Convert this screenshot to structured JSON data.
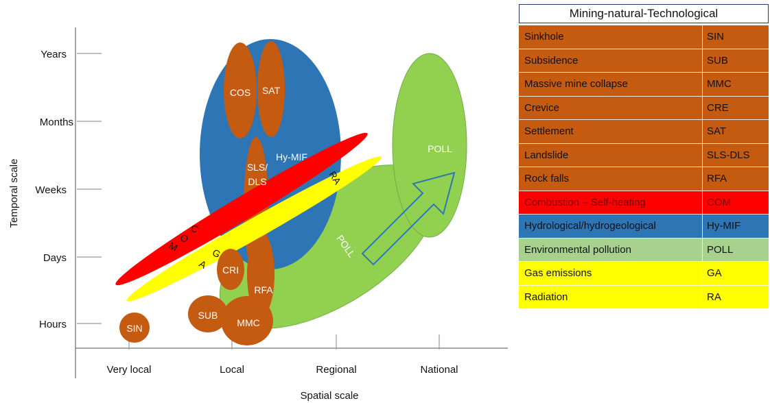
{
  "axes": {
    "x_title": "Spatial scale",
    "y_title": "Temporal scale",
    "x_ticks": [
      "Very local",
      "Local",
      "Regional",
      "National"
    ],
    "y_ticks": [
      "Years",
      "Months",
      "Weeks",
      "Days",
      "Hours"
    ]
  },
  "shapes": {
    "hymif": "Hy-MIF",
    "poll_small": "POLL",
    "poll_large": "POLL",
    "cos": "COS",
    "sat": "SAT",
    "sls_line1": "SLS/",
    "sls_line2": "DLS",
    "com_letters": [
      "C",
      "O",
      "M"
    ],
    "ga_letters": [
      "G",
      "A"
    ],
    "ra": "RA",
    "cri": "CRI",
    "rfa": "RFA",
    "sub": "SUB",
    "mmc": "MMC",
    "sin": "SIN"
  },
  "colors": {
    "mining": "#c55a11",
    "combustion": "#ff0000",
    "hydro": "#2e75b6",
    "pollution_shape": "#92d050",
    "pollution_row": "#a9d18e",
    "gas": "#ffff00",
    "radiation": "#ffff00"
  },
  "legend": {
    "title": "Mining-natural-Technological",
    "rows": [
      {
        "name": "Sinkhole",
        "code": "SIN",
        "bg": "#c55a11",
        "fg": "#111111"
      },
      {
        "name": "Subsidence",
        "code": "SUB",
        "bg": "#c55a11",
        "fg": "#111111"
      },
      {
        "name": "Massive mine collapse",
        "code": "MMC",
        "bg": "#c55a11",
        "fg": "#111111"
      },
      {
        "name": "Crevice",
        "code": "CRE",
        "bg": "#c55a11",
        "fg": "#111111"
      },
      {
        "name": "Settlement",
        "code": "SAT",
        "bg": "#c55a11",
        "fg": "#111111"
      },
      {
        "name": "Landslide",
        "code": "SLS-DLS",
        "bg": "#c55a11",
        "fg": "#111111"
      },
      {
        "name": "Rock falls",
        "code": "RFA",
        "bg": "#c55a11",
        "fg": "#111111"
      },
      {
        "name": "Combustion – Self-heating",
        "code": "COM",
        "bg": "#ff0000",
        "fg": "#7a0000"
      },
      {
        "name": "Hydrological/hydrogeological",
        "code": "Hy-MIF",
        "bg": "#2e75b6",
        "fg": "#111111"
      },
      {
        "name": "Environmental pollution",
        "code": "POLL",
        "bg": "#a9d18e",
        "fg": "#111111"
      },
      {
        "name": "Gas emissions",
        "code": "GA",
        "bg": "#ffff00",
        "fg": "#111111"
      },
      {
        "name": "Radiation",
        "code": "RA",
        "bg": "#ffff00",
        "fg": "#111111"
      }
    ]
  }
}
